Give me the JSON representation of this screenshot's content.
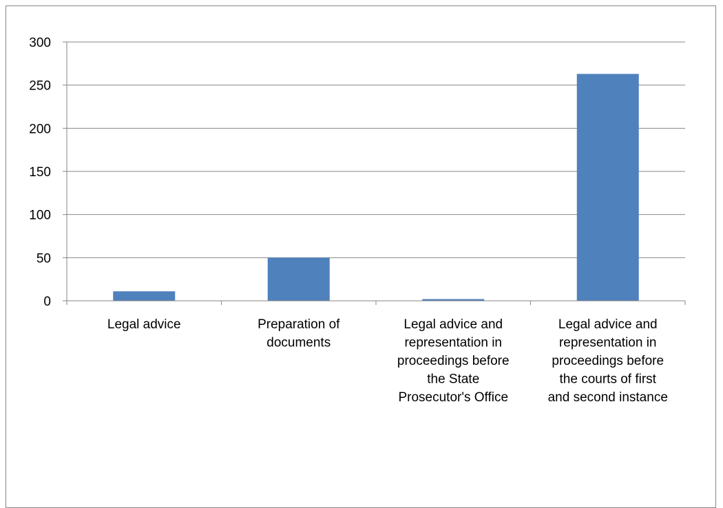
{
  "chart_data": {
    "type": "bar",
    "title": "",
    "xlabel": "",
    "ylabel": "",
    "categories": [
      "Legal advice",
      "Preparation of documents",
      "Legal advice and representation in proceedings before the State Prosecutor's Office",
      "Legal advice and representation in proceedings before the courts of first and second instance"
    ],
    "category_label_lines": [
      [
        "Legal advice"
      ],
      [
        "Preparation of",
        "documents"
      ],
      [
        "Legal advice and",
        "representation in",
        "proceedings before",
        "the State",
        "Prosecutor's Office"
      ],
      [
        "Legal advice and",
        "representation in",
        "proceedings before",
        "the courts of first",
        "and second instance"
      ]
    ],
    "values": [
      11,
      50,
      2,
      263
    ],
    "ylim": [
      0,
      300
    ],
    "yticks": [
      0,
      50,
      100,
      150,
      200,
      250,
      300
    ],
    "grid": true,
    "legend": "none",
    "bar_color": "#4F81BD",
    "grid_color": "#868686"
  }
}
